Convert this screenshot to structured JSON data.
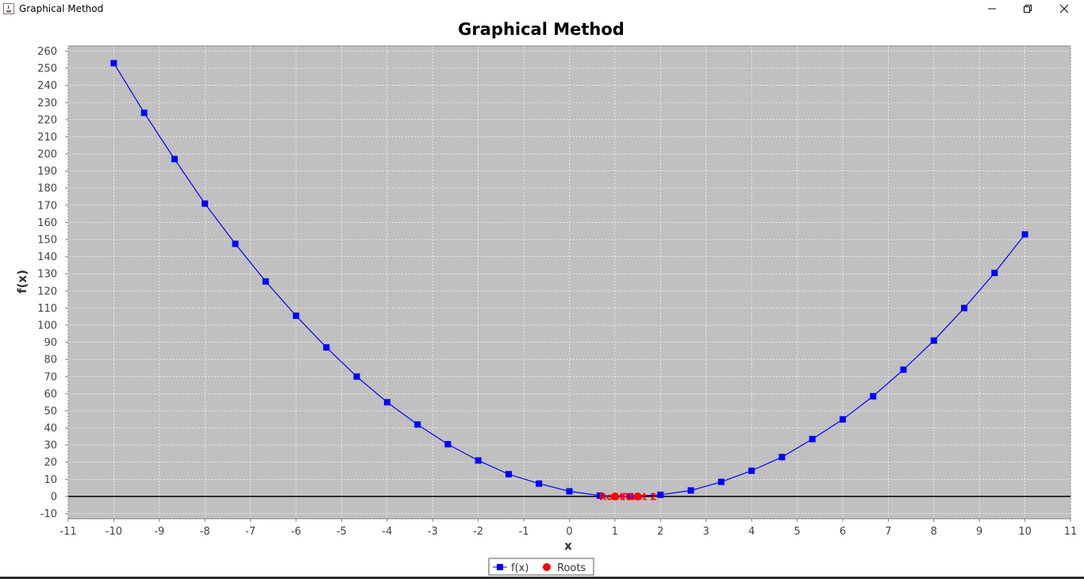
{
  "window": {
    "title": "Graphical Method",
    "controls": {
      "minimize_icon": "minimize-icon",
      "maximize_icon": "restore-icon",
      "close_icon": "close-icon"
    }
  },
  "chart_data": {
    "type": "line",
    "title": "Graphical Method",
    "xlabel": "x",
    "ylabel": "f(x)",
    "xlim": [
      -11,
      11
    ],
    "ylim": [
      -13,
      263
    ],
    "xticks": [
      -11,
      -10,
      -9,
      -8,
      -7,
      -6,
      -5,
      -4,
      -3,
      -2,
      -1,
      0,
      1,
      2,
      3,
      4,
      5,
      6,
      7,
      8,
      9,
      10,
      11
    ],
    "yticks": [
      -10,
      0,
      10,
      20,
      30,
      40,
      50,
      60,
      70,
      80,
      90,
      100,
      110,
      120,
      130,
      140,
      150,
      160,
      170,
      180,
      190,
      200,
      210,
      220,
      230,
      240,
      250,
      260
    ],
    "grid": true,
    "background": "#c0c0c0",
    "legend_position": "bottom",
    "series": [
      {
        "name": "f(x)",
        "color": "#0000ff",
        "marker": "square",
        "x": [
          -10,
          -9.333,
          -8.667,
          -8,
          -7.333,
          -6.667,
          -6,
          -5.333,
          -4.667,
          -4,
          -3.333,
          -2.667,
          -2,
          -1.333,
          -0.667,
          0,
          0.667,
          1.333,
          2,
          2.667,
          3.333,
          4,
          4.667,
          5.333,
          6,
          6.667,
          7.333,
          8,
          8.667,
          9.333,
          10
        ],
        "y": [
          253,
          224,
          197,
          171,
          147.5,
          125.5,
          105.5,
          87,
          70,
          55,
          42,
          30.5,
          21,
          13,
          7.5,
          3,
          0.5,
          0,
          1,
          3.5,
          8.5,
          15,
          23,
          33.5,
          45,
          58.5,
          74,
          91,
          110,
          130.5,
          153
        ]
      },
      {
        "name": "Roots",
        "color": "#ff0000",
        "marker": "circle",
        "x": [
          1.0,
          1.5
        ],
        "y": [
          0,
          0
        ],
        "labels": [
          "Root 1",
          "Root 2"
        ]
      }
    ]
  }
}
